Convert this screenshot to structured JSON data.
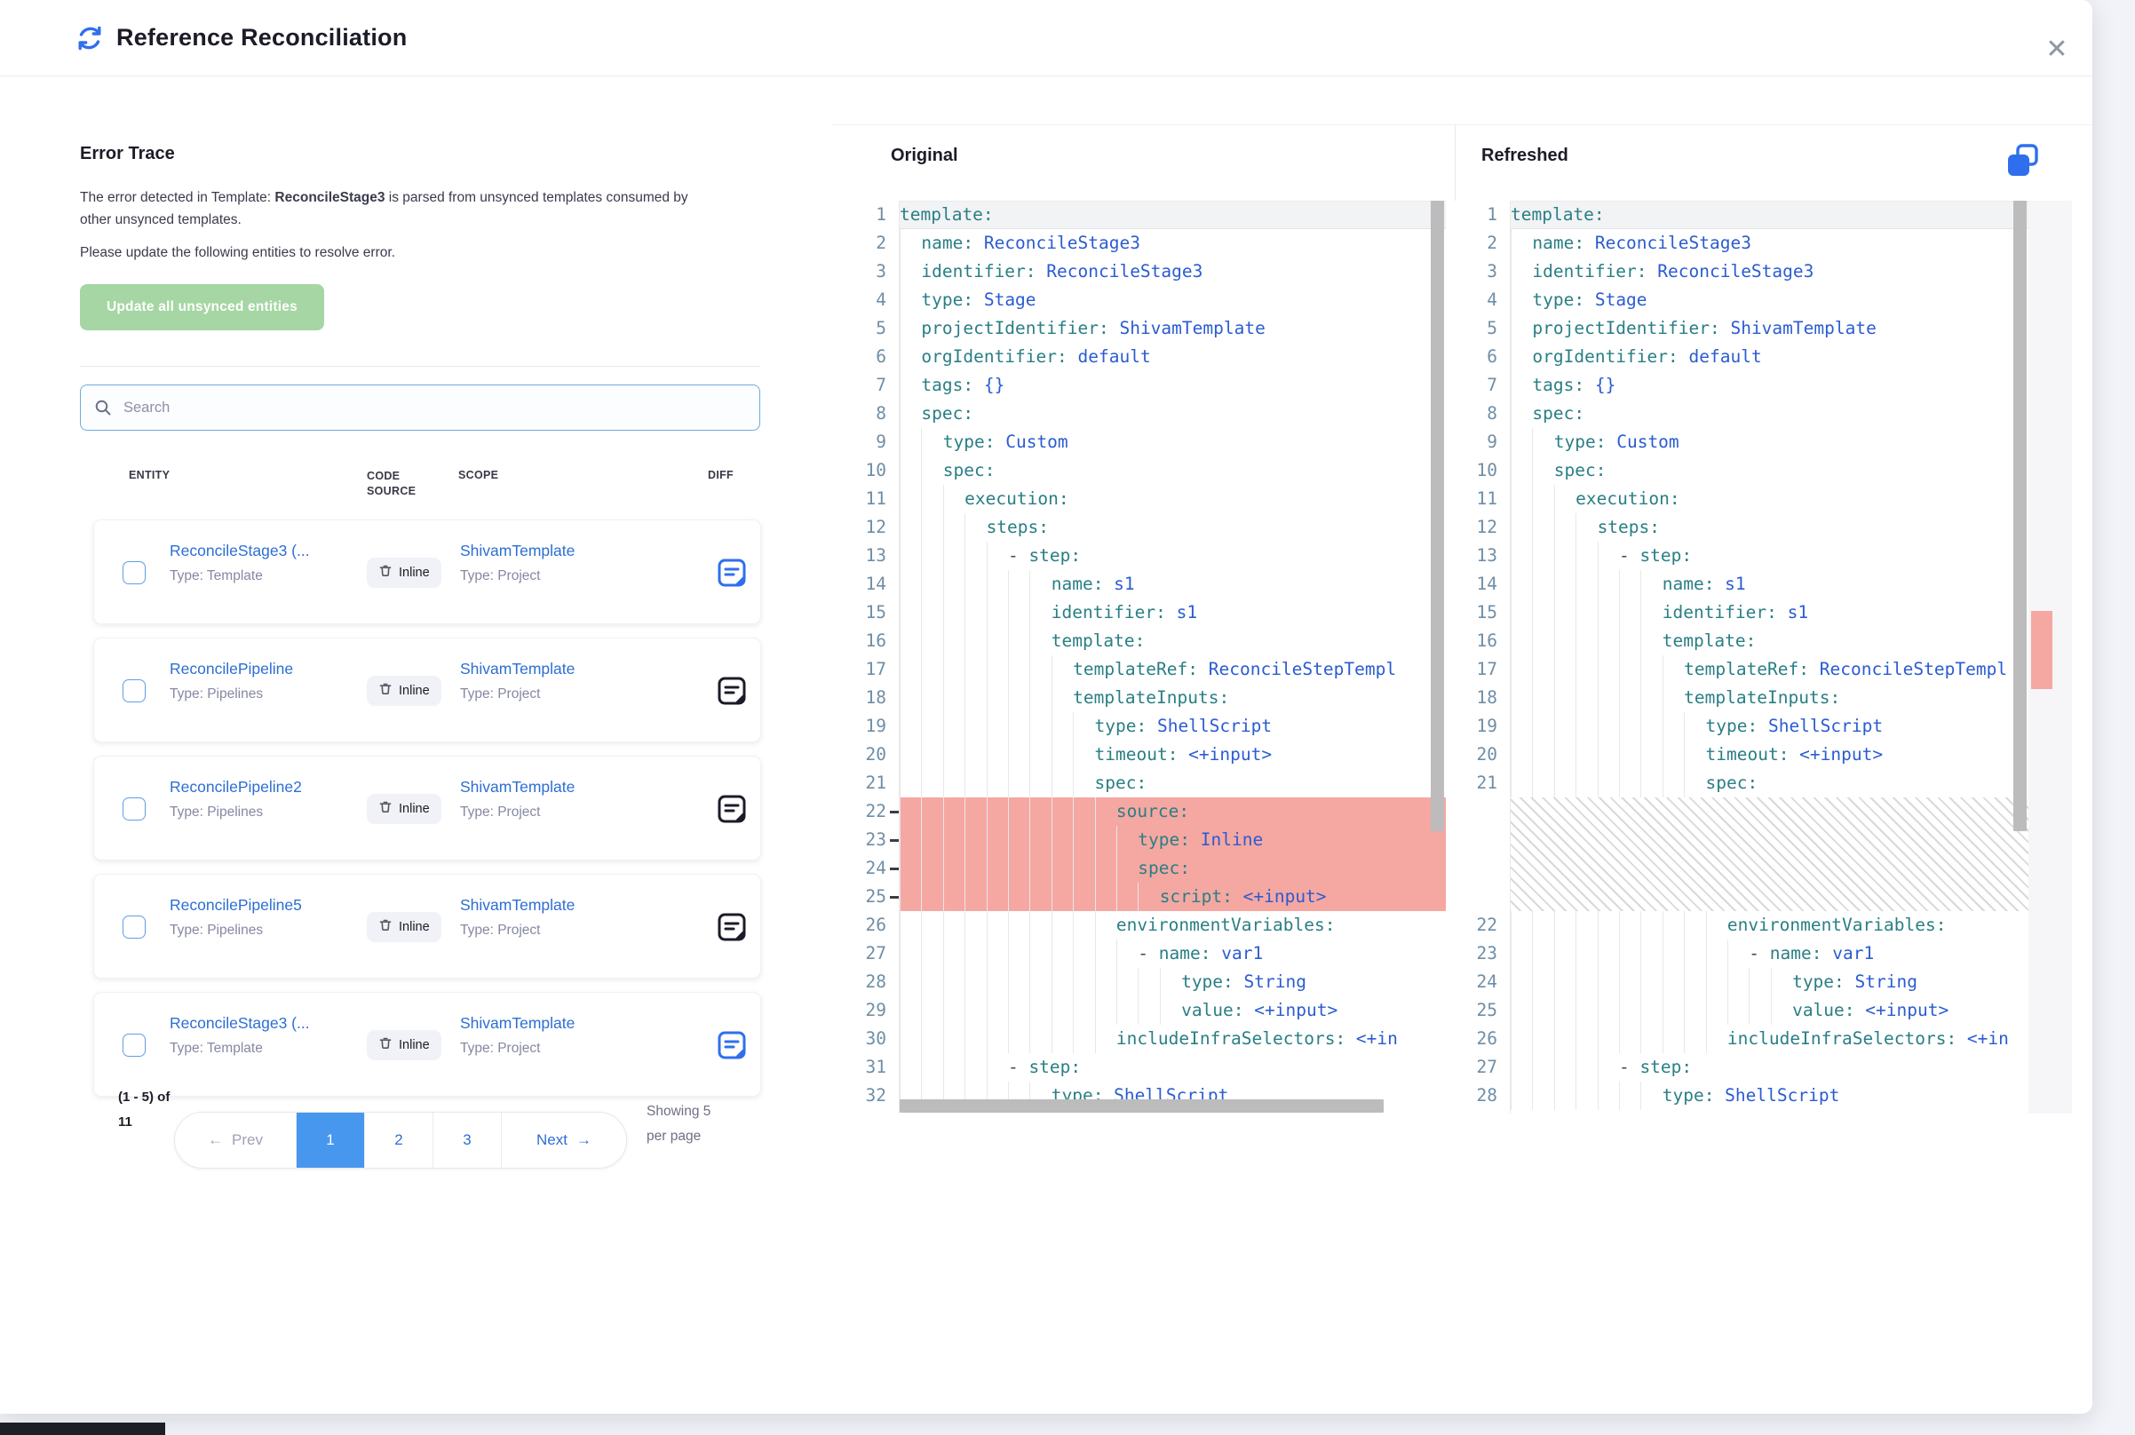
{
  "header": {
    "title": "Reference Reconciliation"
  },
  "error_trace": {
    "heading": "Error Trace",
    "description": {
      "prefix": "The error detected in Template: ",
      "bold": "ReconcileStage3",
      "suffix": " is parsed from unsynced templates consumed by other unsynced templates."
    },
    "description2": "Please update the following entities to resolve error.",
    "update_button": "Update all unsynced entities"
  },
  "search": {
    "placeholder": "Search"
  },
  "table": {
    "headers": {
      "entity": "ENTITY",
      "code_source": "CODE SOURCE",
      "scope": "SCOPE",
      "diff": "DIFF"
    },
    "rows": [
      {
        "name": "ReconcileStage3 (...",
        "type": "Type: Template",
        "code_source": "Inline",
        "scope": "ShivamTemplate",
        "scope_type": "Type: Project",
        "diff_active": true
      },
      {
        "name": "ReconcilePipeline",
        "type": "Type: Pipelines",
        "code_source": "Inline",
        "scope": "ShivamTemplate",
        "scope_type": "Type: Project",
        "diff_active": false
      },
      {
        "name": "ReconcilePipeline2",
        "type": "Type: Pipelines",
        "code_source": "Inline",
        "scope": "ShivamTemplate",
        "scope_type": "Type: Project",
        "diff_active": false
      },
      {
        "name": "ReconcilePipeline5",
        "type": "Type: Pipelines",
        "code_source": "Inline",
        "scope": "ShivamTemplate",
        "scope_type": "Type: Project",
        "diff_active": false
      },
      {
        "name": "ReconcileStage3 (...",
        "type": "Type: Template",
        "code_source": "Inline",
        "scope": "ShivamTemplate",
        "scope_type": "Type: Project",
        "diff_active": true
      }
    ]
  },
  "pagination": {
    "range": "(1 - 5) of 11",
    "prev": "Prev",
    "pages": [
      "1",
      "2",
      "3"
    ],
    "active_page": "1",
    "next": "Next",
    "showing": "Showing 5 per page"
  },
  "diff": {
    "original_title": "Original",
    "refreshed_title": "Refreshed",
    "original_lines": [
      {
        "n": 1,
        "i": 0,
        "k": "template"
      },
      {
        "n": 2,
        "i": 1,
        "k": "name",
        "v": "ReconcileStage3"
      },
      {
        "n": 3,
        "i": 1,
        "k": "identifier",
        "v": "ReconcileStage3"
      },
      {
        "n": 4,
        "i": 1,
        "k": "type",
        "v": "Stage"
      },
      {
        "n": 5,
        "i": 1,
        "k": "projectIdentifier",
        "v": "ShivamTemplate"
      },
      {
        "n": 6,
        "i": 1,
        "k": "orgIdentifier",
        "v": "default"
      },
      {
        "n": 7,
        "i": 1,
        "k": "tags",
        "v": "{}"
      },
      {
        "n": 8,
        "i": 1,
        "k": "spec"
      },
      {
        "n": 9,
        "i": 2,
        "k": "type",
        "v": "Custom"
      },
      {
        "n": 10,
        "i": 2,
        "k": "spec"
      },
      {
        "n": 11,
        "i": 3,
        "k": "execution"
      },
      {
        "n": 12,
        "i": 4,
        "k": "steps"
      },
      {
        "n": 13,
        "i": 5,
        "d": 1,
        "k": "step"
      },
      {
        "n": 14,
        "i": 7,
        "k": "name",
        "v": "s1"
      },
      {
        "n": 15,
        "i": 7,
        "k": "identifier",
        "v": "s1"
      },
      {
        "n": 16,
        "i": 7,
        "k": "template"
      },
      {
        "n": 17,
        "i": 8,
        "k": "templateRef",
        "v": "ReconcileStepTempl"
      },
      {
        "n": 18,
        "i": 8,
        "k": "templateInputs"
      },
      {
        "n": 19,
        "i": 9,
        "k": "type",
        "v": "ShellScript"
      },
      {
        "n": 20,
        "i": 9,
        "k": "timeout",
        "v": "<+input>"
      },
      {
        "n": 21,
        "i": 9,
        "k": "spec"
      },
      {
        "n": 22,
        "i": 10,
        "x": 1,
        "k": "source"
      },
      {
        "n": 23,
        "i": 11,
        "x": 1,
        "k": "type",
        "v": "Inline"
      },
      {
        "n": 24,
        "i": 11,
        "x": 1,
        "k": "spec"
      },
      {
        "n": 25,
        "i": 12,
        "x": 1,
        "k": "script",
        "v": "<+input>"
      },
      {
        "n": 26,
        "i": 10,
        "k": "environmentVariables"
      },
      {
        "n": 27,
        "i": 11,
        "d": 1,
        "k": "name",
        "v": "var1"
      },
      {
        "n": 28,
        "i": 13,
        "k": "type",
        "v": "String"
      },
      {
        "n": 29,
        "i": 13,
        "k": "value",
        "v": "<+input>"
      },
      {
        "n": 30,
        "i": 10,
        "k": "includeInfraSelectors",
        "v": "<+in"
      },
      {
        "n": 31,
        "i": 5,
        "d": 1,
        "k": "step"
      },
      {
        "n": 32,
        "i": 7,
        "k": "type",
        "v": "ShellScript"
      }
    ],
    "refreshed_lines": [
      {
        "n": 1,
        "i": 0,
        "k": "template"
      },
      {
        "n": 2,
        "i": 1,
        "k": "name",
        "v": "ReconcileStage3"
      },
      {
        "n": 3,
        "i": 1,
        "k": "identifier",
        "v": "ReconcileStage3"
      },
      {
        "n": 4,
        "i": 1,
        "k": "type",
        "v": "Stage"
      },
      {
        "n": 5,
        "i": 1,
        "k": "projectIdentifier",
        "v": "ShivamTemplate"
      },
      {
        "n": 6,
        "i": 1,
        "k": "orgIdentifier",
        "v": "default"
      },
      {
        "n": 7,
        "i": 1,
        "k": "tags",
        "v": "{}"
      },
      {
        "n": 8,
        "i": 1,
        "k": "spec"
      },
      {
        "n": 9,
        "i": 2,
        "k": "type",
        "v": "Custom"
      },
      {
        "n": 10,
        "i": 2,
        "k": "spec"
      },
      {
        "n": 11,
        "i": 3,
        "k": "execution"
      },
      {
        "n": 12,
        "i": 4,
        "k": "steps"
      },
      {
        "n": 13,
        "i": 5,
        "d": 1,
        "k": "step"
      },
      {
        "n": 14,
        "i": 7,
        "k": "name",
        "v": "s1"
      },
      {
        "n": 15,
        "i": 7,
        "k": "identifier",
        "v": "s1"
      },
      {
        "n": 16,
        "i": 7,
        "k": "template"
      },
      {
        "n": 17,
        "i": 8,
        "k": "templateRef",
        "v": "ReconcileStepTempl"
      },
      {
        "n": 18,
        "i": 8,
        "k": "templateInputs"
      },
      {
        "n": 19,
        "i": 9,
        "k": "type",
        "v": "ShellScript"
      },
      {
        "n": 20,
        "i": 9,
        "k": "timeout",
        "v": "<+input>"
      },
      {
        "n": 21,
        "i": 9,
        "k": "spec"
      },
      {
        "hatch": 4
      },
      {
        "n": 22,
        "i": 10,
        "k": "environmentVariables"
      },
      {
        "n": 23,
        "i": 11,
        "d": 1,
        "k": "name",
        "v": "var1"
      },
      {
        "n": 24,
        "i": 13,
        "k": "type",
        "v": "String"
      },
      {
        "n": 25,
        "i": 13,
        "k": "value",
        "v": "<+input>"
      },
      {
        "n": 26,
        "i": 10,
        "k": "includeInfraSelectors",
        "v": "<+in"
      },
      {
        "n": 27,
        "i": 5,
        "d": 1,
        "k": "step"
      },
      {
        "n": 28,
        "i": 7,
        "k": "type",
        "v": "ShellScript"
      }
    ]
  },
  "colors": {
    "accent_blue": "#2f6fed",
    "link_blue": "#2d6ed3",
    "active_page_blue": "#4897ef",
    "button_green": "#a5d6a3",
    "delete_highlight": "#f5a7a2",
    "key_teal": "#2a7f84",
    "value_blue": "#2b5cd1"
  }
}
